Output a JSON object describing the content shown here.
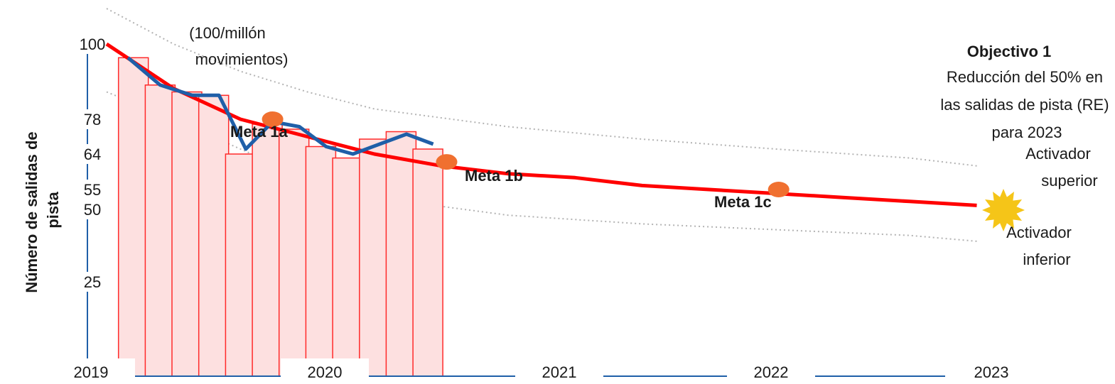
{
  "chart_data": {
    "type": "bar",
    "ylabel_lines": [
      "Número de salidas de",
      "pista"
    ],
    "unit_note_lines": [
      "(100/millón",
      "movimientos)"
    ],
    "y_ticks": [
      100,
      78,
      64,
      55,
      50,
      25
    ],
    "x_ticks": [
      "2019",
      "2020",
      "2021",
      "2022",
      "2023"
    ],
    "bars": [
      {
        "x": 2019.1,
        "value": 96
      },
      {
        "x": 2019.2,
        "value": 88
      },
      {
        "x": 2019.3,
        "value": 86
      },
      {
        "x": 2019.4,
        "value": 85
      },
      {
        "x": 2019.5,
        "value": 64
      },
      {
        "x": 2019.6,
        "value": 76
      },
      {
        "x": 2019.7,
        "value": 74
      },
      {
        "x": 2019.8,
        "value": 67
      },
      {
        "x": 2019.9,
        "value": 63
      },
      {
        "x": 2020.0,
        "value": 70
      },
      {
        "x": 2020.1,
        "value": 73
      },
      {
        "x": 2020.2,
        "value": 66
      }
    ],
    "series": [
      {
        "type": "line",
        "color": "#1f5fa8",
        "x": [
          2019.08,
          2019.2,
          2019.32,
          2019.42,
          2019.52,
          2019.62,
          2019.72,
          2019.82,
          2019.92,
          2020.02,
          2020.12,
          2020.22
        ],
        "values": [
          96,
          88,
          85,
          85,
          66,
          77,
          75,
          67,
          64,
          68,
          72,
          68
        ]
      },
      {
        "type": "line",
        "color": "#ff0000",
        "x": [
          2019.0,
          2019.25,
          2019.5,
          2019.75,
          2020.0,
          2020.25,
          2020.5,
          2020.75,
          2021.0,
          2021.25,
          2021.5,
          2021.75,
          2022.0,
          2022.25
        ],
        "values": [
          100,
          87,
          78,
          71,
          64,
          61,
          59,
          58,
          56,
          55,
          54,
          53,
          52,
          51
        ]
      }
    ],
    "bands": {
      "upper": {
        "x": [
          2019.0,
          2019.25,
          2019.5,
          2019.75,
          2020.0,
          2020.5,
          2021.0,
          2021.5,
          2022.0,
          2022.25
        ],
        "values": [
          110,
          100,
          92,
          86,
          81,
          75,
          70,
          66,
          63,
          61
        ]
      },
      "lower": {
        "x": [
          2019.0,
          2019.25,
          2019.5,
          2019.75,
          2020.0,
          2020.5,
          2021.0,
          2021.5,
          2022.0,
          2022.25
        ],
        "values": [
          86,
          78,
          66,
          58,
          53,
          48,
          45,
          43,
          41,
          39
        ]
      }
    },
    "goals": [
      {
        "label": "Meta 1a",
        "x": 2019.62,
        "value": 78,
        "color": "#f07030"
      },
      {
        "label": "Meta 1b",
        "x": 2020.27,
        "value": 62,
        "color": "#f07030"
      },
      {
        "label": "Meta 1c",
        "x": 2021.51,
        "value": 55,
        "color": "#f07030"
      }
    ],
    "target_star": {
      "x": 2022.27,
      "value": 50,
      "color": "#f5c518"
    },
    "annotations": {
      "objective_title": "Objectivo 1",
      "objective_lines": [
        "Reducción del 50% en",
        "las salidas de pista (RE)",
        "para 2023"
      ],
      "upper_trigger_lines": [
        "Activador",
        "superior"
      ],
      "lower_trigger_lines": [
        "Activador",
        "inferior"
      ]
    },
    "colors": {
      "bar_fill": "#fde0e0",
      "bar_stroke": "#ff2a2a",
      "axis": "#1f5fa8",
      "band": "#b3b3b3",
      "trend": "#ff0000",
      "actual": "#1f5fa8"
    }
  }
}
